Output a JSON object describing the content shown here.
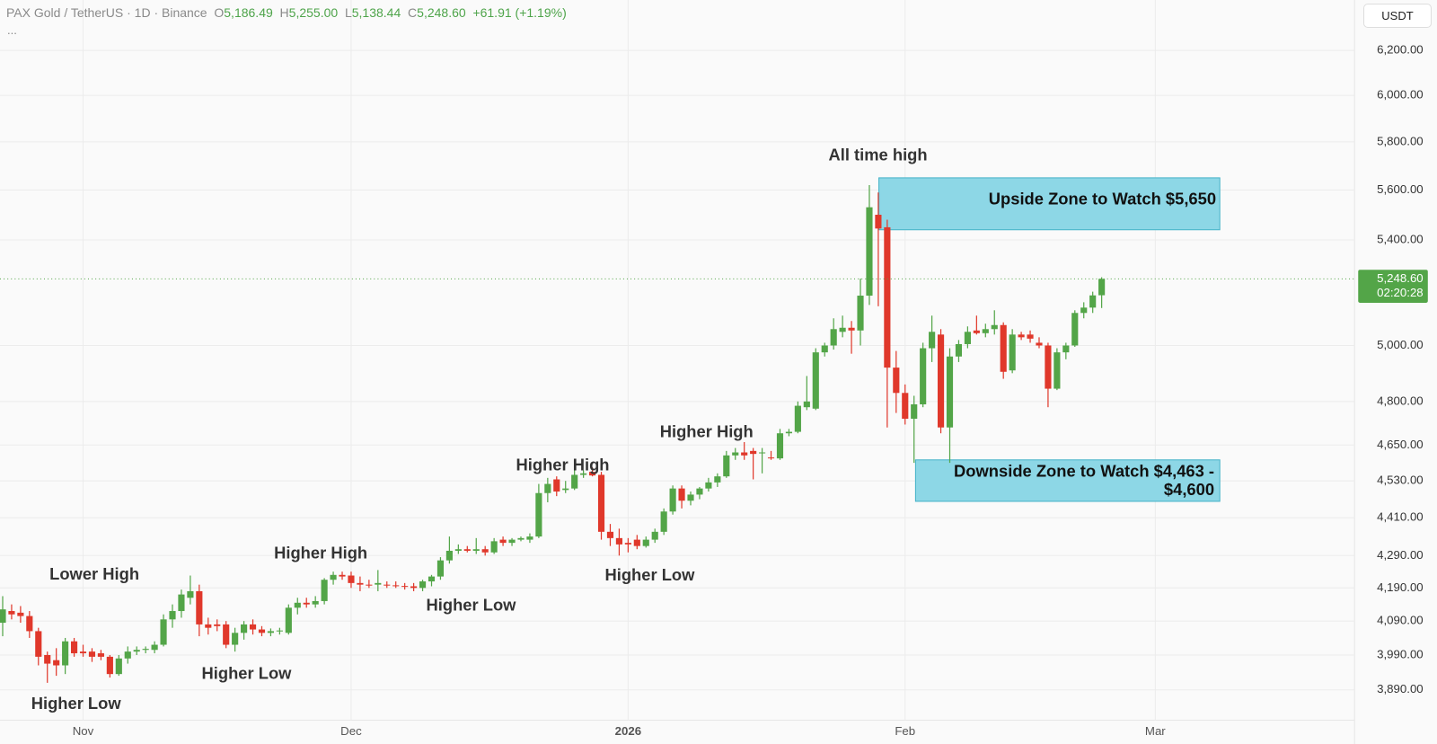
{
  "header": {
    "symbol": "PAX Gold / TetherUS · 1D · Binance",
    "o_label": "O",
    "o_value": "5,186.49",
    "h_label": "H",
    "h_value": "5,255.00",
    "l_label": "L",
    "l_value": "5,138.44",
    "c_label": "C",
    "c_value": "5,248.60",
    "change": "+61.91 (+1.19%)",
    "more": "...",
    "currency": "USDT"
  },
  "chart_data": {
    "type": "candlestick",
    "log_scale": true,
    "grid": true,
    "up_color": "#53a548",
    "down_color": "#e0382b",
    "xlim": [
      -0.3,
      151.3
    ],
    "xticks": [
      {
        "value": 9,
        "label": "Nov"
      },
      {
        "value": 39,
        "label": "Dec"
      },
      {
        "value": 70,
        "label": "2026"
      },
      {
        "value": 101,
        "label": "Feb"
      },
      {
        "value": 129,
        "label": "Mar"
      }
    ],
    "ylim": [
      3805,
      6432
    ],
    "yticks": [
      {
        "value": 3890,
        "label": "3,890.00"
      },
      {
        "value": 3990,
        "label": "3,990.00"
      },
      {
        "value": 4090,
        "label": "4,090.00"
      },
      {
        "value": 4190,
        "label": "4,190.00"
      },
      {
        "value": 4290,
        "label": "4,290.00"
      },
      {
        "value": 4410,
        "label": "4,410.00"
      },
      {
        "value": 4530,
        "label": "4,530.00"
      },
      {
        "value": 4650,
        "label": "4,650.00"
      },
      {
        "value": 4800,
        "label": "4,800.00"
      },
      {
        "value": 5000,
        "label": "5,000.00"
      },
      {
        "value": 5400,
        "label": "5,400.00"
      },
      {
        "value": 5600,
        "label": "5,600.00"
      },
      {
        "value": 5800,
        "label": "5,800.00"
      },
      {
        "value": 6000,
        "label": "6,000.00"
      },
      {
        "value": 6200,
        "label": "6,200.00"
      }
    ],
    "open": [
      4085,
      4120,
      4115,
      4105,
      4060,
      3990,
      3975,
      3960,
      4030,
      4000,
      4000,
      3995,
      3985,
      3935,
      3980,
      4000,
      4005,
      4005,
      4020,
      4095,
      4120,
      4160,
      4180,
      4080,
      4080,
      4080,
      4020,
      4055,
      4080,
      4065,
      4055,
      4060,
      4055,
      4130,
      4145,
      4140,
      4150,
      4215,
      4230,
      4228,
      4205,
      4200,
      4200,
      4200,
      4198,
      4196,
      4195,
      4190,
      4210,
      4225,
      4275,
      4305,
      4310,
      4305,
      4310,
      4300,
      4340,
      4330,
      4340,
      4340,
      4350,
      4490,
      4535,
      4500,
      4505,
      4550,
      4560,
      4550,
      4365,
      4345,
      4330,
      4340,
      4320,
      4340,
      4365,
      4430,
      4505,
      4465,
      4485,
      4505,
      4525,
      4545,
      4615,
      4625,
      4630,
      4625,
      4608,
      4605,
      4690,
      4695,
      4780,
      4775,
      4975,
      5000,
      5050,
      5065,
      5055,
      5185,
      5500,
      5450,
      4920,
      4830,
      4740,
      4790,
      4990,
      5040,
      4710,
      4960,
      5005,
      5055,
      5045,
      5060,
      5075,
      4910,
      5040,
      5040,
      5010,
      5000,
      4845,
      4975,
      5000,
      5120,
      5140,
      5186.49
    ],
    "high": [
      4165,
      4140,
      4135,
      4120,
      4070,
      4000,
      4010,
      4040,
      4040,
      4020,
      4010,
      4005,
      3990,
      3990,
      4015,
      4015,
      4015,
      4030,
      4110,
      4140,
      4185,
      4228,
      4200,
      4100,
      4095,
      4090,
      4070,
      4090,
      4095,
      4075,
      4068,
      4070,
      4140,
      4160,
      4160,
      4165,
      4220,
      4240,
      4240,
      4240,
      4225,
      4215,
      4245,
      4210,
      4210,
      4205,
      4205,
      4215,
      4230,
      4285,
      4350,
      4325,
      4320,
      4345,
      4320,
      4345,
      4350,
      4345,
      4350,
      4360,
      4520,
      4540,
      4545,
      4530,
      4565,
      4565,
      4575,
      4560,
      4390,
      4375,
      4345,
      4355,
      4350,
      4375,
      4440,
      4515,
      4515,
      4495,
      4510,
      4540,
      4555,
      4630,
      4640,
      4660,
      4640,
      4640,
      4630,
      4705,
      4705,
      4800,
      4890,
      4990,
      5010,
      5100,
      5110,
      5090,
      5250,
      5620,
      5590,
      5480,
      4980,
      4860,
      4820,
      5010,
      5110,
      5060,
      4990,
      5020,
      5070,
      5110,
      5080,
      5130,
      5085,
      5060,
      5050,
      5055,
      5030,
      5010,
      4990,
      5010,
      5130,
      5160,
      5200,
      5255
    ],
    "low": [
      4045,
      4095,
      4085,
      4040,
      3960,
      3910,
      3930,
      3935,
      3985,
      3985,
      3970,
      3975,
      3925,
      3930,
      3965,
      3990,
      3995,
      3995,
      4015,
      4070,
      4100,
      4140,
      4045,
      4050,
      4060,
      4010,
      4000,
      4035,
      4050,
      4045,
      4045,
      4050,
      4050,
      4110,
      4130,
      4130,
      4140,
      4200,
      4215,
      4190,
      4180,
      4190,
      4180,
      4190,
      4190,
      4185,
      4180,
      4180,
      4195,
      4215,
      4265,
      4295,
      4300,
      4295,
      4290,
      4295,
      4320,
      4320,
      4335,
      4330,
      4345,
      4460,
      4480,
      4490,
      4500,
      4540,
      4545,
      4340,
      4320,
      4290,
      4300,
      4310,
      4315,
      4330,
      4355,
      4420,
      4440,
      4450,
      4470,
      4495,
      4510,
      4540,
      4600,
      4600,
      4535,
      4555,
      4600,
      4600,
      4680,
      4690,
      4770,
      4770,
      4960,
      4985,
      5030,
      4970,
      5000,
      5150,
      5145,
      4710,
      4760,
      4720,
      4590,
      4780,
      4940,
      4690,
      4590,
      4940,
      4990,
      5040,
      5030,
      5040,
      4880,
      4900,
      5020,
      5010,
      4990,
      4780,
      4840,
      4950,
      4995,
      5100,
      5120,
      5138.44
    ],
    "close": [
      4125,
      4110,
      4105,
      4060,
      3985,
      3965,
      3960,
      4030,
      3995,
      3995,
      3985,
      3985,
      3935,
      3980,
      4000,
      4005,
      4008,
      4020,
      4095,
      4120,
      4170,
      4180,
      4080,
      4070,
      4075,
      4020,
      4055,
      4080,
      4065,
      4055,
      4060,
      4062,
      4130,
      4145,
      4140,
      4150,
      4215,
      4230,
      4225,
      4205,
      4200,
      4198,
      4205,
      4198,
      4196,
      4195,
      4190,
      4210,
      4225,
      4275,
      4305,
      4310,
      4305,
      4310,
      4300,
      4335,
      4330,
      4340,
      4345,
      4350,
      4490,
      4520,
      4495,
      4505,
      4550,
      4555,
      4548,
      4365,
      4345,
      4325,
      4325,
      4320,
      4340,
      4365,
      4430,
      4505,
      4465,
      4485,
      4505,
      4525,
      4545,
      4615,
      4625,
      4615,
      4620,
      4625,
      4605,
      4690,
      4695,
      4785,
      4800,
      4975,
      5000,
      5060,
      5065,
      5055,
      5185,
      5530,
      5445,
      4920,
      4830,
      4740,
      4790,
      4990,
      5050,
      4710,
      4960,
      5005,
      5050,
      5045,
      5060,
      5075,
      4905,
      5040,
      5030,
      5025,
      5000,
      4845,
      4975,
      5000,
      5120,
      5140,
      5186,
      5248.6
    ],
    "last_price_label": "5,248.60",
    "countdown": "02:20:28",
    "zones": [
      {
        "label_lines": [
          "Upside Zone to Watch $5,650"
        ],
        "high": 5650,
        "low": 5440
      },
      {
        "label_lines": [
          "Downside Zone to Watch $4,463 -",
          "$4,600"
        ],
        "high": 4600,
        "low": 4463
      }
    ],
    "annotations": [
      "All time high",
      "Lower High",
      "Higher High",
      "Higher Low",
      "Higher Low",
      "Higher Low",
      "Higher High",
      "Higher Low",
      "Higher High"
    ]
  }
}
